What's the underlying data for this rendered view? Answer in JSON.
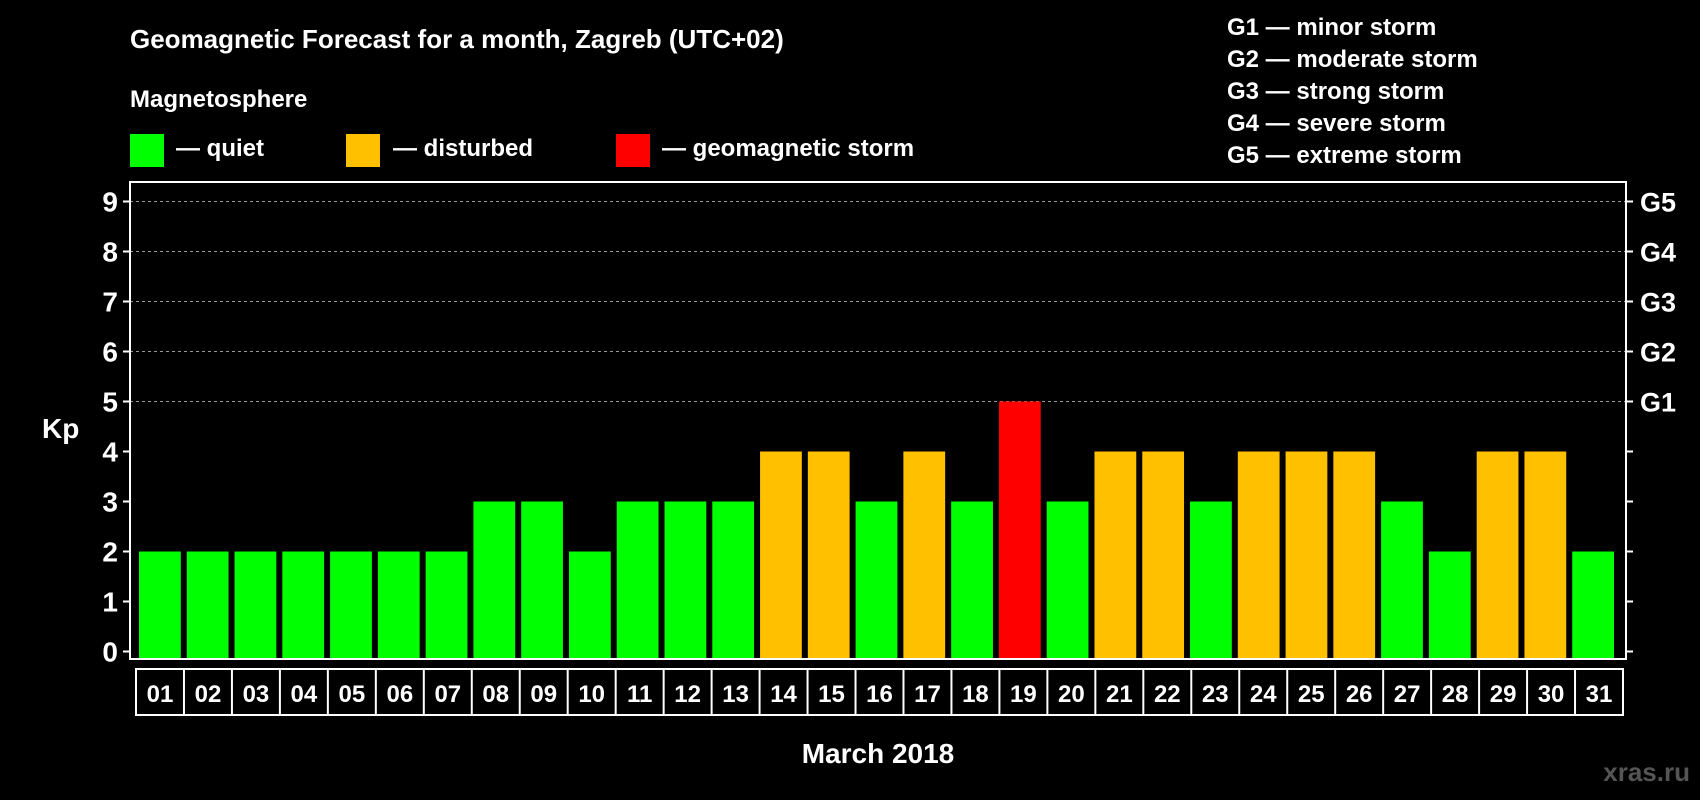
{
  "chart_data": {
    "type": "bar",
    "title": "Geomagnetic Forecast for a month, Zagreb (UTC+02)",
    "subtitle": "Magnetosphere",
    "xlabel": "March 2018",
    "ylabel": "Kp",
    "ylim": [
      0,
      9
    ],
    "yticks": [
      "0",
      "1",
      "2",
      "3",
      "4",
      "5",
      "6",
      "7",
      "8",
      "9"
    ],
    "right_ticks": [
      {
        "kp": 5,
        "label": "G1"
      },
      {
        "kp": 6,
        "label": "G2"
      },
      {
        "kp": 7,
        "label": "G3"
      },
      {
        "kp": 8,
        "label": "G4"
      },
      {
        "kp": 9,
        "label": "G5"
      }
    ],
    "grid": "dashed horizontal at 5-9",
    "categories": [
      "01",
      "02",
      "03",
      "04",
      "05",
      "06",
      "07",
      "08",
      "09",
      "10",
      "11",
      "12",
      "13",
      "14",
      "15",
      "16",
      "17",
      "18",
      "19",
      "20",
      "21",
      "22",
      "23",
      "24",
      "25",
      "26",
      "27",
      "28",
      "29",
      "30",
      "31"
    ],
    "values": [
      2,
      2,
      2,
      2,
      2,
      2,
      2,
      3,
      3,
      2,
      3,
      3,
      3,
      4,
      4,
      3,
      4,
      3,
      5,
      3,
      4,
      4,
      3,
      4,
      4,
      4,
      3,
      2,
      4,
      4,
      2
    ],
    "legend": [
      {
        "label": "— quiet",
        "color": "#00ff00"
      },
      {
        "label": "— disturbed",
        "color": "#ffc000"
      },
      {
        "label": "— geomagnetic storm",
        "color": "#ff0000"
      }
    ],
    "storm_levels": [
      "G1 — minor storm",
      "G2 — moderate storm",
      "G3 — strong storm",
      "G4 — severe storm",
      "G5 — extreme storm"
    ]
  },
  "watermark": "xras.ru"
}
